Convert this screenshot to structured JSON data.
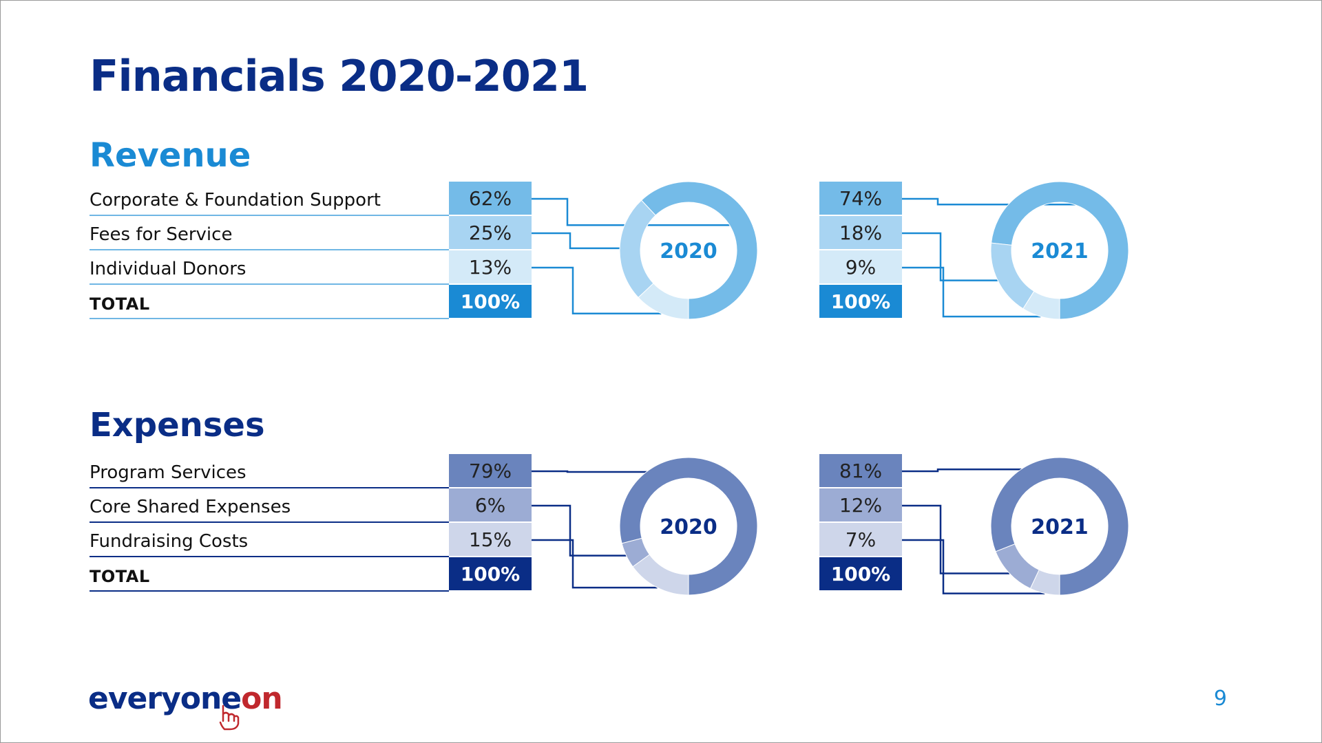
{
  "title": "Financials 2020-2021",
  "page_number": "9",
  "logo": {
    "text_main": "everyone",
    "text_accent": "on"
  },
  "revenue": {
    "heading": "Revenue",
    "color_heading": "#1a8ad4",
    "rows": [
      {
        "label": "Corporate & Foundation Support"
      },
      {
        "label": "Fees for Service"
      },
      {
        "label": "Individual Donors"
      },
      {
        "label": "TOTAL"
      }
    ]
  },
  "expenses": {
    "heading": "Expenses",
    "color_heading": "#0a2d86",
    "rows": [
      {
        "label": "Program Services"
      },
      {
        "label": "Core Shared Expenses"
      },
      {
        "label": "Fundraising Costs"
      },
      {
        "label": "TOTAL"
      }
    ]
  },
  "chart_data": [
    {
      "type": "pie",
      "group": "Revenue",
      "center_label": "2020",
      "categories": [
        "Corporate & Foundation Support",
        "Fees for Service",
        "Individual Donors"
      ],
      "values": [
        62,
        25,
        13
      ],
      "value_labels": [
        "62%",
        "25%",
        "13%"
      ],
      "total_label": "100%",
      "colors": [
        "#74bbe8",
        "#a8d4f2",
        "#d4eaf8"
      ],
      "total_color": "#1a8ad4"
    },
    {
      "type": "pie",
      "group": "Revenue",
      "center_label": "2021",
      "categories": [
        "Corporate & Foundation Support",
        "Fees for Service",
        "Individual Donors"
      ],
      "values": [
        74,
        18,
        9
      ],
      "value_labels": [
        "74%",
        "18%",
        "9%"
      ],
      "total_label": "100%",
      "colors": [
        "#74bbe8",
        "#a8d4f2",
        "#d4eaf8"
      ],
      "total_color": "#1a8ad4"
    },
    {
      "type": "pie",
      "group": "Expenses",
      "center_label": "2020",
      "categories": [
        "Program Services",
        "Core Shared Expenses",
        "Fundraising Costs"
      ],
      "values": [
        79,
        6,
        15
      ],
      "value_labels": [
        "79%",
        "6%",
        "15%"
      ],
      "total_label": "100%",
      "colors": [
        "#6a84bd",
        "#9cacd4",
        "#ced6ea"
      ],
      "total_color": "#0a2d86"
    },
    {
      "type": "pie",
      "group": "Expenses",
      "center_label": "2021",
      "categories": [
        "Program Services",
        "Core Shared Expenses",
        "Fundraising Costs"
      ],
      "values": [
        81,
        12,
        7
      ],
      "value_labels": [
        "81%",
        "12%",
        "7%"
      ],
      "total_label": "100%",
      "colors": [
        "#6a84bd",
        "#9cacd4",
        "#ced6ea"
      ],
      "total_color": "#0a2d86"
    }
  ]
}
